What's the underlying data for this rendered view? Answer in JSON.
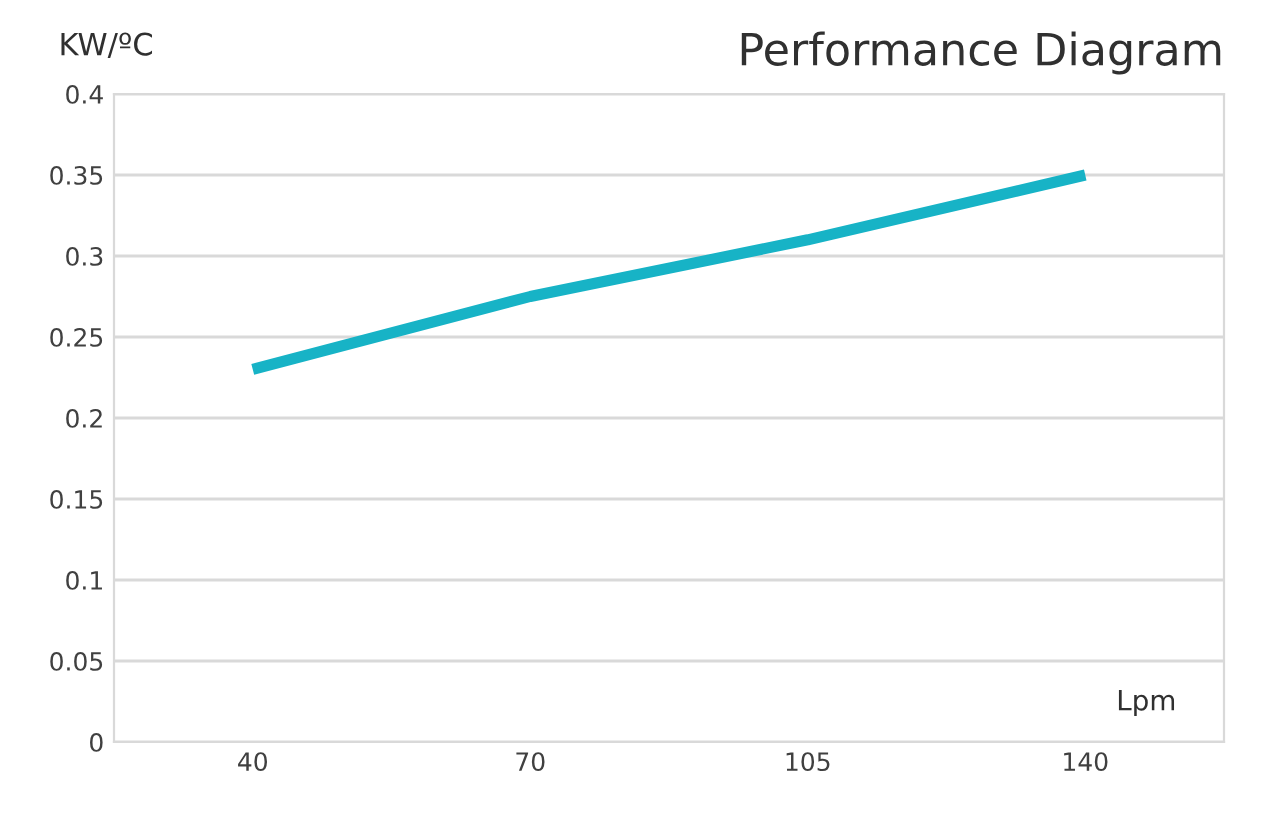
{
  "chart_data": {
    "type": "line",
    "title": "Performance Diagram",
    "ylabel": "KW/ºC",
    "xlabel": "Lpm",
    "categories": [
      "40",
      "70",
      "105",
      "140"
    ],
    "series": [
      {
        "color": "#17b3c6",
        "values": [
          0.23,
          0.275,
          0.31,
          0.35
        ]
      }
    ],
    "ylim": [
      0,
      0.4
    ],
    "yticks": [
      0,
      0.05,
      0.1,
      0.15,
      0.2,
      0.25,
      0.3,
      0.35,
      0.4
    ],
    "grid": "y",
    "marker": "none",
    "line_style": "solid"
  }
}
